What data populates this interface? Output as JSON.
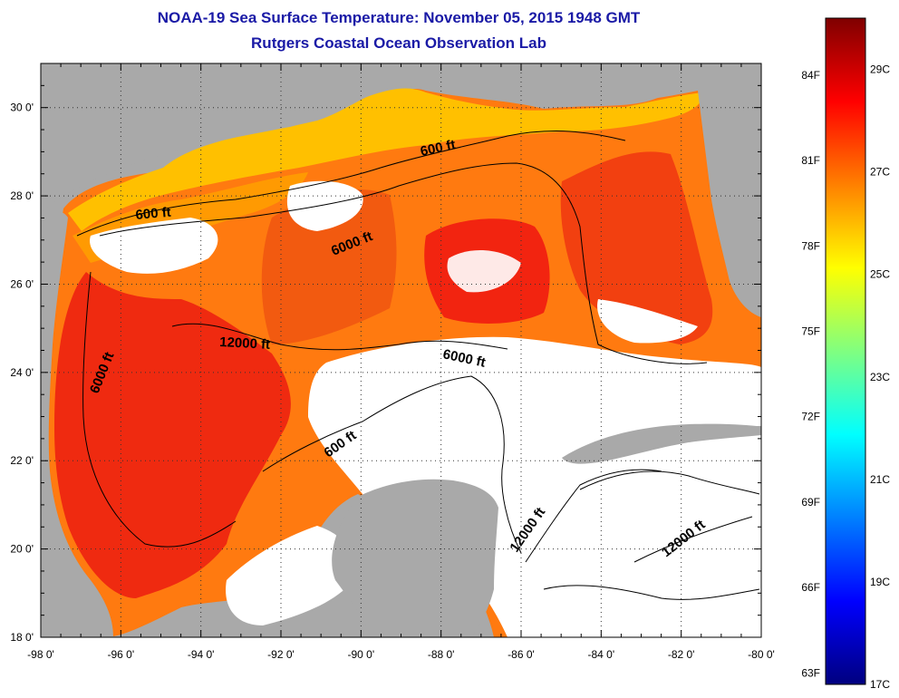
{
  "title": {
    "line1": "NOAA-19 Sea Surface Temperature:  November 05, 2015 1948 GMT",
    "line2": "Rutgers Coastal Ocean Observation Lab"
  },
  "map": {
    "lon_range": [
      -98,
      -80
    ],
    "lat_range": [
      18,
      31
    ],
    "lon_ticks": [
      {
        "value": -98,
        "label": "-98 0'"
      },
      {
        "value": -96,
        "label": "-96 0'"
      },
      {
        "value": -94,
        "label": "-94 0'"
      },
      {
        "value": -92,
        "label": "-92 0'"
      },
      {
        "value": -90,
        "label": "-90 0'"
      },
      {
        "value": -88,
        "label": "-88 0'"
      },
      {
        "value": -86,
        "label": "-86 0'"
      },
      {
        "value": -84,
        "label": "-84 0'"
      },
      {
        "value": -82,
        "label": "-82 0'"
      },
      {
        "value": -80,
        "label": "-80 0'"
      }
    ],
    "lat_ticks": [
      {
        "value": 18,
        "label": "18 0'"
      },
      {
        "value": 20,
        "label": "20 0'"
      },
      {
        "value": 22,
        "label": "22 0'"
      },
      {
        "value": 24,
        "label": "24 0'"
      },
      {
        "value": 26,
        "label": "26 0'"
      },
      {
        "value": 28,
        "label": "28 0'"
      },
      {
        "value": 30,
        "label": "30 0'"
      }
    ],
    "contour_labels": [
      {
        "text": "600 ft"
      },
      {
        "text": "600 ft"
      },
      {
        "text": "6000 ft"
      },
      {
        "text": "12000 ft"
      },
      {
        "text": "6000 ft"
      },
      {
        "text": "6000 ft"
      },
      {
        "text": "600 ft"
      },
      {
        "text": "12000 ft"
      },
      {
        "text": "12000 ft"
      }
    ],
    "colors": {
      "land": "#a9a9a9",
      "nodata": "#ffffff",
      "warm_dark": "#c00000",
      "warm": "#ff4a00",
      "mid": "#ff9a00",
      "cool": "#ffe000"
    }
  },
  "colorbar": {
    "stops": [
      "#00007f",
      "#0000ff",
      "#0080ff",
      "#00ffff",
      "#80ff80",
      "#ffff00",
      "#ff8000",
      "#ff0000",
      "#7f0000"
    ],
    "fahrenheit": [
      {
        "value": 63,
        "label": "63F"
      },
      {
        "value": 66,
        "label": "66F"
      },
      {
        "value": 69,
        "label": "69F"
      },
      {
        "value": 72,
        "label": "72F"
      },
      {
        "value": 75,
        "label": "75F"
      },
      {
        "value": 78,
        "label": "78F"
      },
      {
        "value": 81,
        "label": "81F"
      },
      {
        "value": 84,
        "label": "84F"
      }
    ],
    "celsius": [
      {
        "value": 17,
        "label": "17C"
      },
      {
        "value": 19,
        "label": "19C"
      },
      {
        "value": 21,
        "label": "21C"
      },
      {
        "value": 23,
        "label": "23C"
      },
      {
        "value": 25,
        "label": "25C"
      },
      {
        "value": 27,
        "label": "27C"
      },
      {
        "value": 29,
        "label": "29C"
      }
    ],
    "range_c": [
      17,
      30
    ]
  }
}
